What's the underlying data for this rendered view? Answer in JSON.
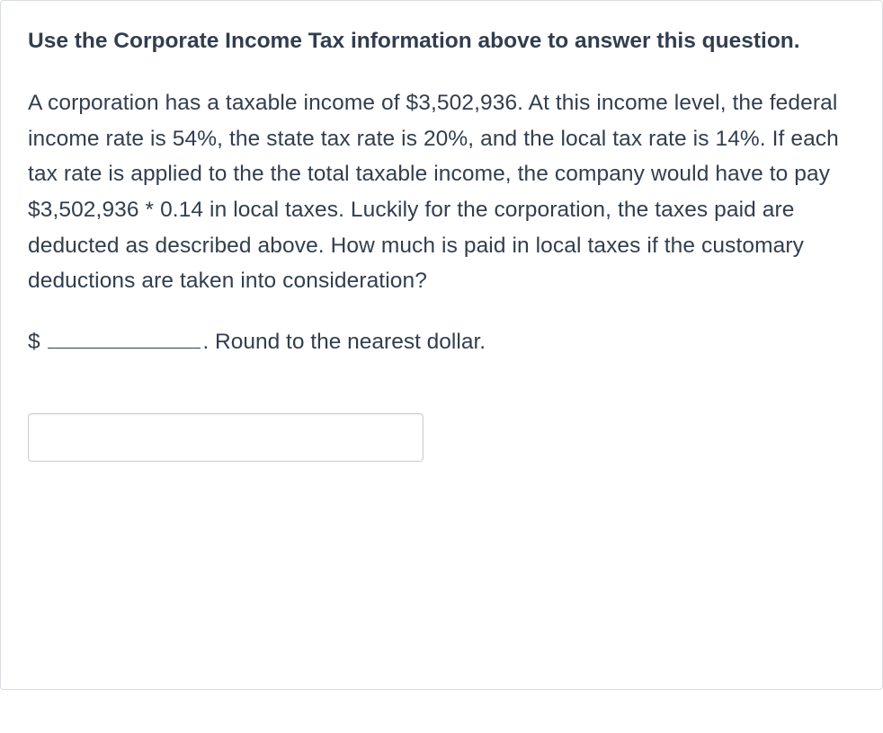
{
  "question": {
    "instruction": "Use the Corporate Income Tax information above to answer this question.",
    "body": "A corporation has a taxable income of $3,502,936.  At this income level, the federal income rate is 54%, the state tax rate is 20%, and the local tax rate is 14%.  If each tax rate is applied to the the total taxable income, the company would have to pay $3,502,936 * 0.14 in local taxes.  Luckily for the corporation, the taxes paid are deducted as described above.  How much is paid in local taxes if the customary deductions are taken into consideration?",
    "answer_prefix": "$ ",
    "answer_suffix": ".  Round to the nearest dollar.",
    "input_value": ""
  },
  "style": {
    "text_color": "#323e4e",
    "border_color": "#d9dde2",
    "input_border_color": "#c8cdd4",
    "heading_fontsize": 24.5,
    "body_fontsize": 24.5,
    "background_color": "#ffffff"
  }
}
